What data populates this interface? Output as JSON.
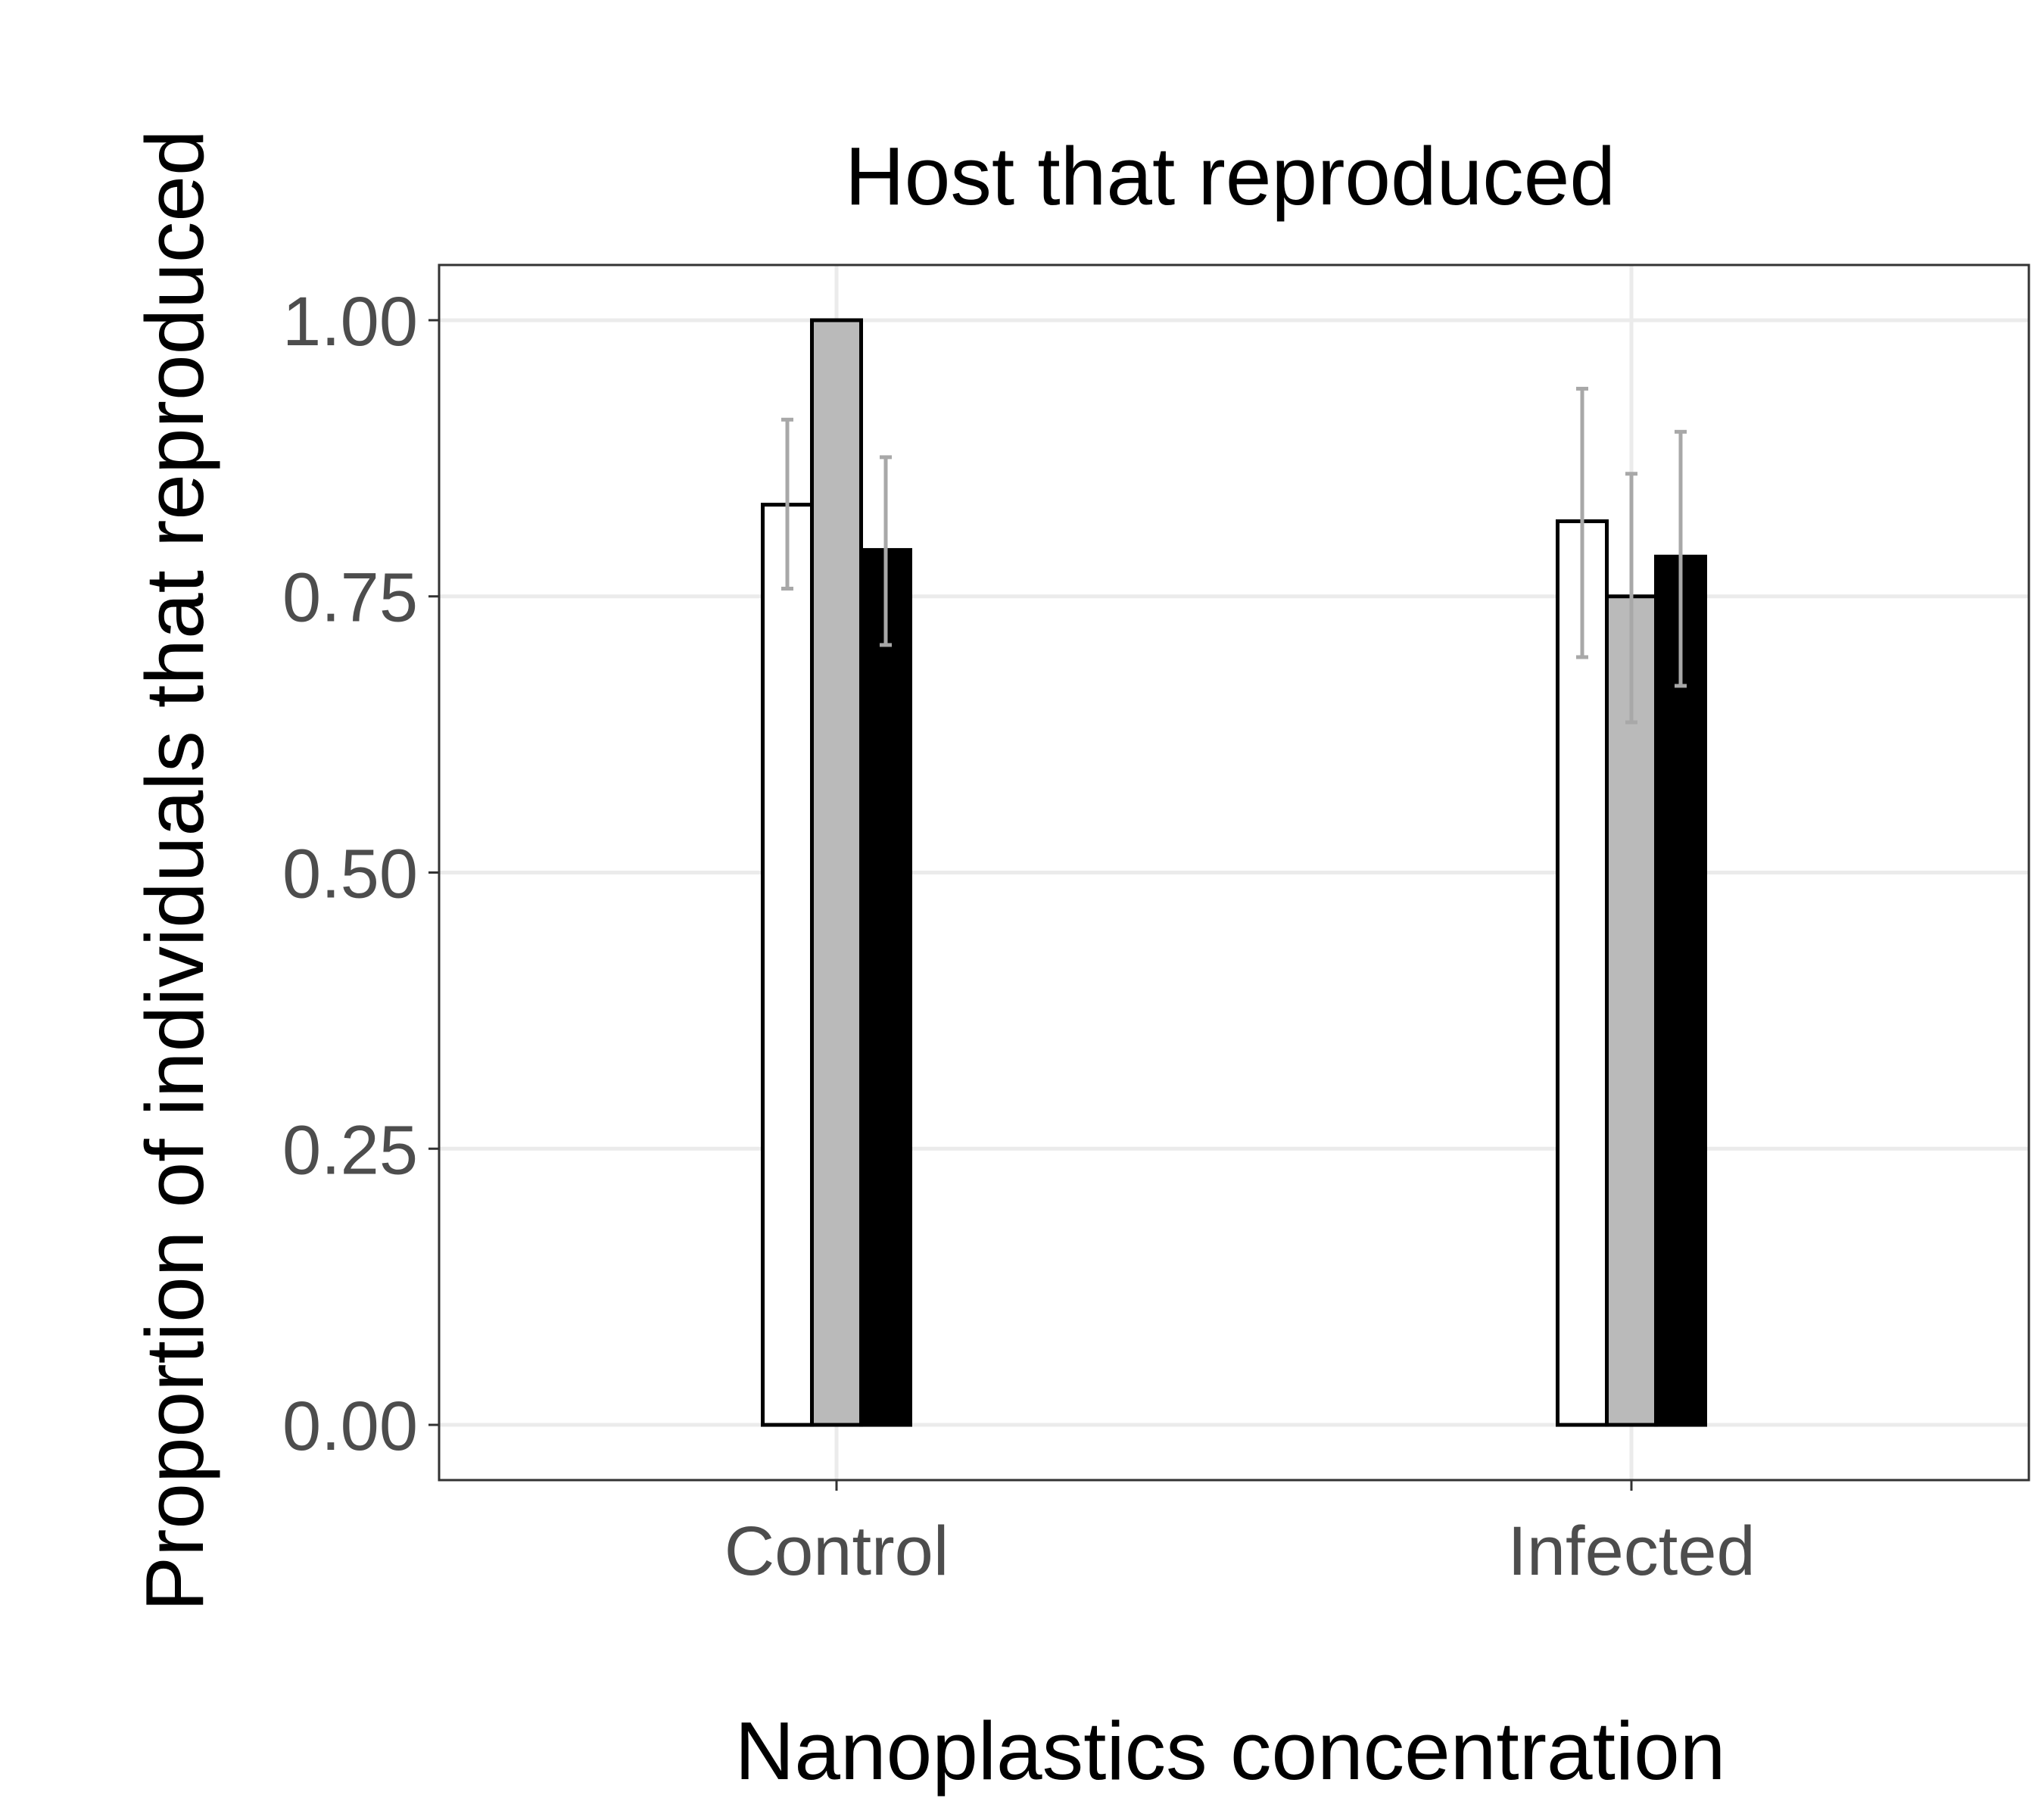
{
  "chart_data": {
    "type": "bar",
    "title": "Host that reproduced",
    "xlabel": "Nanoplastics concentration",
    "ylabel": "Proportion of individuals that reproduced",
    "categories": [
      "Control",
      "Infected"
    ],
    "yticks": [
      "0.00",
      "0.25",
      "0.50",
      "0.75",
      "1.00"
    ],
    "ylim": [
      -0.05,
      1.05
    ],
    "grid": true,
    "legend": "none",
    "series": [
      {
        "values": [
          0.833,
          0.818
        ],
        "error_low": [
          0.757,
          0.695
        ],
        "error_high": [
          0.91,
          0.938
        ],
        "fill": "#ffffff",
        "stroke": "#000000"
      },
      {
        "values": [
          1.0,
          0.75
        ],
        "error_low": [
          1.0,
          0.636
        ],
        "error_high": [
          1.0,
          0.861
        ],
        "fill": "#bababa",
        "stroke": "#000000"
      },
      {
        "values": [
          0.792,
          0.786
        ],
        "error_low": [
          0.706,
          0.669
        ],
        "error_high": [
          0.876,
          0.899
        ],
        "fill": "#000000",
        "stroke": "#000000"
      }
    ],
    "colors": {
      "grid": "#ebebeb",
      "panel_border": "#333333",
      "errorbar": "#a8a8a8"
    }
  }
}
